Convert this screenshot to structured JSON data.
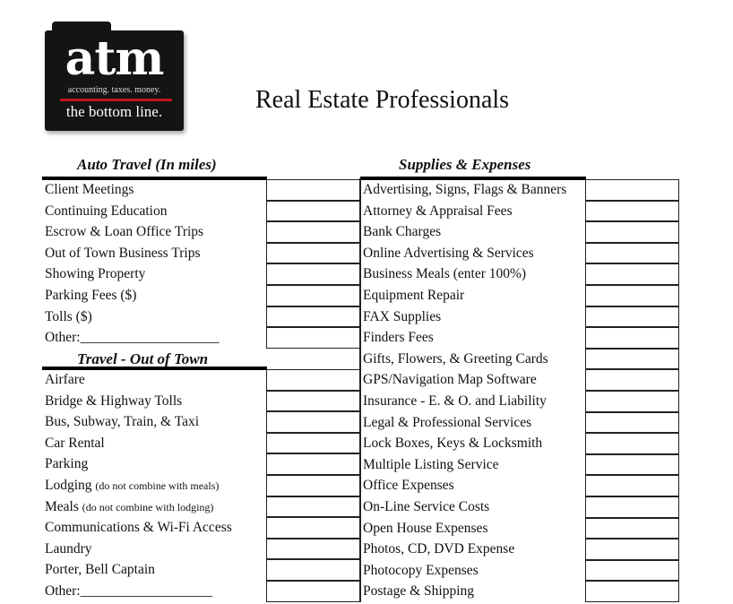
{
  "logo": {
    "name": "atm",
    "tagline": "accounting. taxes. money.",
    "slogan": "the bottom line.",
    "accent_color": "#c0141c"
  },
  "title": "Real Estate Professionals",
  "auto_travel": {
    "heading": "Auto Travel (In miles)",
    "items": [
      {
        "label": "Client Meetings"
      },
      {
        "label": "Continuing Education"
      },
      {
        "label": "Escrow & Loan Office Trips"
      },
      {
        "label": "Out of Town Business Trips"
      },
      {
        "label": "Showing Property"
      },
      {
        "label": "Parking Fees ($)"
      },
      {
        "label": "Tolls ($)"
      },
      {
        "label": "Other:____________________"
      }
    ]
  },
  "travel_out_of_town": {
    "heading": "Travel - Out of Town",
    "items": [
      {
        "label": "Airfare"
      },
      {
        "label": "Bridge & Highway Tolls"
      },
      {
        "label": "Bus, Subway, Train, & Taxi"
      },
      {
        "label": "Car Rental"
      },
      {
        "label": "Parking"
      },
      {
        "label": "Lodging",
        "note": "(do not combine with meals)"
      },
      {
        "label": "Meals",
        "note": "(do not combine with lodging)"
      },
      {
        "label": "Communications & Wi-Fi Access"
      },
      {
        "label": "Laundry"
      },
      {
        "label": "Porter, Bell Captain"
      },
      {
        "label": "Other:___________________"
      }
    ]
  },
  "supplies_expenses": {
    "heading": "Supplies & Expenses",
    "items": [
      {
        "label": "Advertising, Signs, Flags & Banners"
      },
      {
        "label": "Attorney & Appraisal Fees"
      },
      {
        "label": "Bank Charges"
      },
      {
        "label": "Online Advertising & Services"
      },
      {
        "label": "Business Meals (enter 100%)"
      },
      {
        "label": "Equipment Repair"
      },
      {
        "label": "FAX Supplies"
      },
      {
        "label": "Finders Fees"
      },
      {
        "label": "Gifts, Flowers, & Greeting Cards"
      },
      {
        "label": "GPS/Navigation Map Software"
      },
      {
        "label": "Insurance - E. & O. and Liability"
      },
      {
        "label": "Legal & Professional Services"
      },
      {
        "label": "Lock Boxes, Keys & Locksmith"
      },
      {
        "label": "Multiple Listing Service"
      },
      {
        "label": "Office Expenses"
      },
      {
        "label": "On-Line Service Costs"
      },
      {
        "label": "Open House Expenses"
      },
      {
        "label": "Photos, CD, DVD Expense"
      },
      {
        "label": "Photocopy Expenses"
      },
      {
        "label": "Postage & Shipping"
      }
    ]
  }
}
